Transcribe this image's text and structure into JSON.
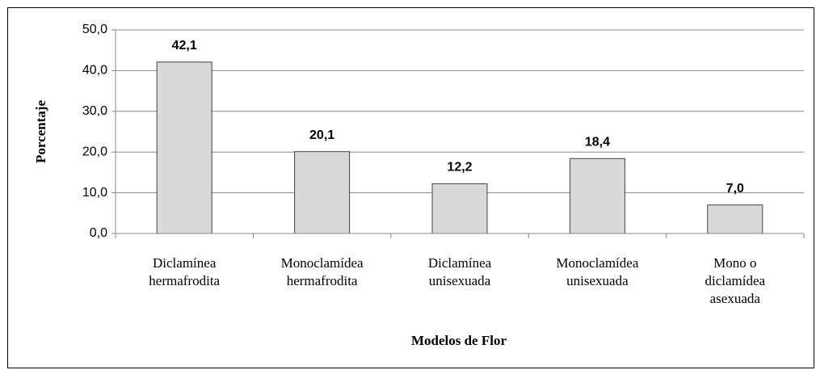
{
  "chart_data": {
    "type": "bar",
    "categories": [
      "Diclamínea\nhermafrodita",
      "Monoclamídea\nhermafrodita",
      "Diclamínea\nunisexuada",
      "Monoclamídea\nunisexuada",
      "Mono o\ndiclamídea\nasexuada"
    ],
    "values": [
      42.1,
      20.1,
      12.2,
      18.4,
      7.0
    ],
    "value_labels": [
      "42,1",
      "20,1",
      "12,2",
      "18,4",
      "7,0"
    ],
    "color": "#d9d9d9",
    "ylabel": "Porcentaje",
    "xlabel": "Modelos de Flor",
    "ylim": [
      0,
      50
    ],
    "yticks": [
      {
        "value": 0,
        "label": "0,0"
      },
      {
        "value": 10,
        "label": "10,0"
      },
      {
        "value": 20,
        "label": "20,0"
      },
      {
        "value": 30,
        "label": "30,0"
      },
      {
        "value": 40,
        "label": "40,0"
      },
      {
        "value": 50,
        "label": "50,0"
      }
    ],
    "grid": true
  }
}
